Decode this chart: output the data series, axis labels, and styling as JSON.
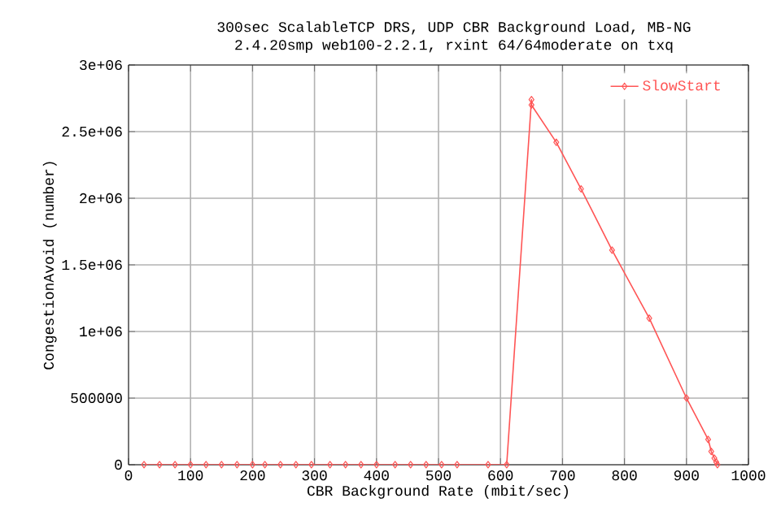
{
  "chart_data": {
    "type": "line",
    "title": "300sec ScalableTCP DRS, UDP CBR Background Load, MB-NG",
    "subtitle": "2.4.20smp web100-2.2.1, rxint 64/64moderate on txq",
    "xlabel": "CBR Background Rate (mbit/sec)",
    "ylabel": "CongestionAvoid (number)",
    "series": [
      {
        "name": "SlowStart",
        "color": "#ff5555",
        "x": [
          25,
          50,
          75,
          100,
          125,
          150,
          175,
          200,
          220,
          245,
          270,
          295,
          325,
          350,
          375,
          400,
          430,
          455,
          480,
          505,
          530,
          580,
          610,
          650,
          650,
          690,
          730,
          780,
          840,
          900,
          935,
          940,
          945,
          948,
          950
        ],
        "values": [
          0,
          0,
          0,
          0,
          0,
          0,
          0,
          0,
          0,
          0,
          0,
          0,
          0,
          0,
          0,
          0,
          0,
          0,
          0,
          0,
          0,
          0,
          0,
          2740000,
          2700000,
          2420000,
          2070000,
          1610000,
          1100000,
          500000,
          190000,
          100000,
          50000,
          20000,
          0
        ]
      }
    ],
    "xlim": [
      0,
      1000
    ],
    "xticks": [
      0,
      100,
      200,
      300,
      400,
      500,
      600,
      700,
      800,
      900,
      1000
    ],
    "ylim": [
      0,
      3000000
    ],
    "yticks": [
      0,
      500000,
      {
        "value": 1000000,
        "label": "1e+06"
      },
      {
        "value": 1500000,
        "label": "1.5e+06"
      },
      {
        "value": 2000000,
        "label": "2e+06"
      },
      {
        "value": 2500000,
        "label": "2.5e+06"
      },
      {
        "value": 3000000,
        "label": "3e+06"
      }
    ],
    "grid": true,
    "legend": "top right",
    "marker": "diamond",
    "line_style": "solid"
  }
}
